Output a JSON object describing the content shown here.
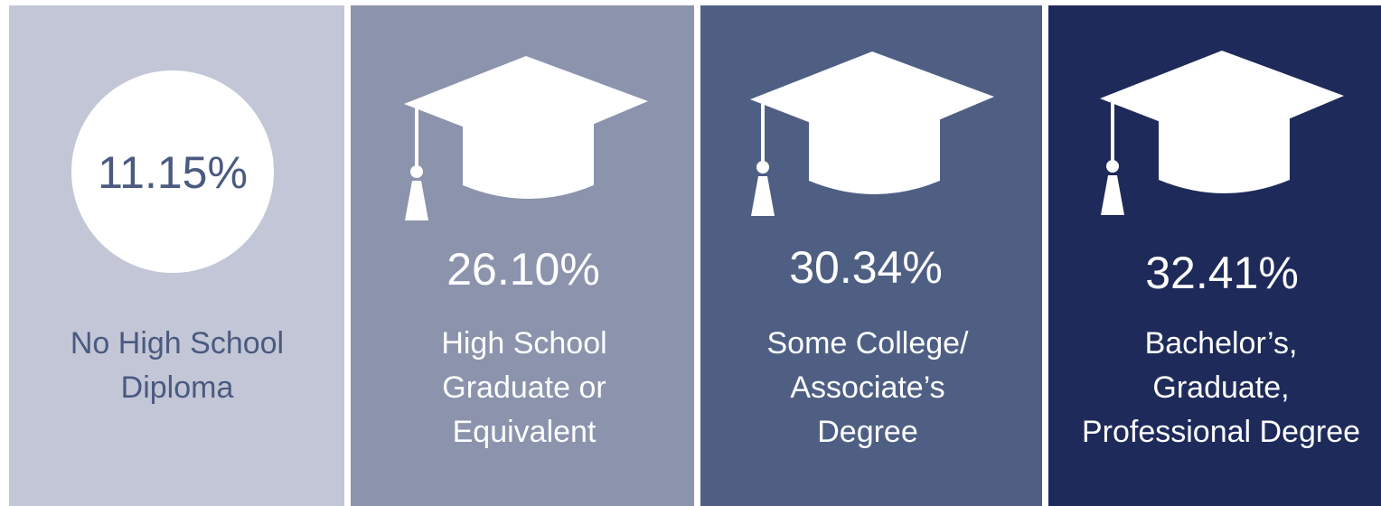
{
  "panels": [
    {
      "value": "11.15%",
      "label": [
        "No High School",
        "Diploma"
      ]
    },
    {
      "value": "26.10%",
      "label": [
        "High School",
        "Graduate or",
        "Equivalent"
      ]
    },
    {
      "value": "30.34%",
      "label": [
        "Some College/",
        "Associate’s",
        "Degree"
      ]
    },
    {
      "value": "32.41%",
      "label": [
        "Bachelor’s,",
        "Graduate,",
        "Professional Degree"
      ]
    }
  ]
}
